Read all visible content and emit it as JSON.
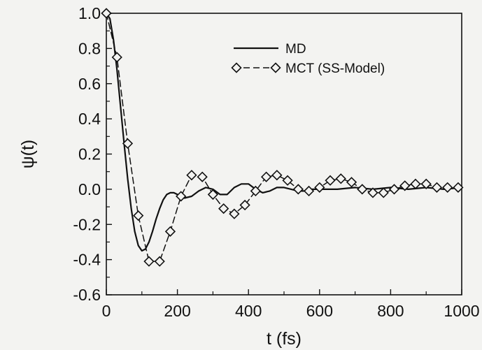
{
  "chart_data": {
    "type": "line",
    "title": "",
    "xlabel": "t (fs)",
    "ylabel": "ψ(t)",
    "xlim": [
      0,
      1000
    ],
    "ylim": [
      -0.6,
      1.0
    ],
    "xticks": [
      0,
      200,
      400,
      600,
      800,
      1000
    ],
    "yticks": [
      1.0,
      0.8,
      0.6,
      0.4,
      0.2,
      0.0,
      -0.2,
      -0.4,
      -0.6
    ],
    "grid": false,
    "legend_position": "top-right",
    "series": [
      {
        "name": "MD",
        "style": "solid",
        "marker": "none",
        "color": "#111111",
        "x": [
          0,
          10,
          20,
          30,
          40,
          50,
          60,
          70,
          80,
          90,
          100,
          110,
          120,
          130,
          140,
          150,
          160,
          170,
          180,
          190,
          200,
          210,
          220,
          240,
          260,
          280,
          300,
          320,
          340,
          360,
          380,
          400,
          420,
          440,
          460,
          480,
          500,
          520,
          540,
          560,
          580,
          600,
          650,
          700,
          750,
          800,
          850,
          900,
          950,
          1000
        ],
        "y": [
          1.0,
          0.97,
          0.85,
          0.68,
          0.47,
          0.26,
          0.06,
          -0.11,
          -0.24,
          -0.32,
          -0.35,
          -0.34,
          -0.3,
          -0.24,
          -0.17,
          -0.11,
          -0.06,
          -0.03,
          -0.02,
          -0.02,
          -0.03,
          -0.04,
          -0.05,
          -0.04,
          -0.01,
          0.01,
          0.0,
          -0.03,
          -0.03,
          0.01,
          0.03,
          0.03,
          0.0,
          -0.02,
          -0.01,
          0.01,
          0.01,
          0.0,
          -0.01,
          -0.01,
          0.0,
          0.0,
          0.0,
          0.01,
          0.0,
          0.01,
          0.0,
          0.01,
          0.0,
          0.01
        ]
      },
      {
        "name": "MCT (SS-Model)",
        "style": "dashed",
        "marker": "diamond-open",
        "color": "#111111",
        "x": [
          0,
          30,
          60,
          90,
          120,
          150,
          180,
          210,
          240,
          270,
          300,
          330,
          360,
          390,
          420,
          450,
          480,
          510,
          540,
          570,
          600,
          630,
          660,
          690,
          720,
          750,
          780,
          810,
          840,
          870,
          900,
          930,
          960,
          990
        ],
        "y": [
          1.0,
          0.75,
          0.26,
          -0.15,
          -0.41,
          -0.41,
          -0.24,
          -0.04,
          0.08,
          0.07,
          -0.03,
          -0.11,
          -0.14,
          -0.09,
          -0.01,
          0.07,
          0.08,
          0.05,
          0.0,
          -0.01,
          0.01,
          0.05,
          0.06,
          0.04,
          0.0,
          -0.02,
          -0.02,
          0.0,
          0.02,
          0.03,
          0.03,
          0.01,
          0.01,
          0.01
        ]
      }
    ]
  }
}
